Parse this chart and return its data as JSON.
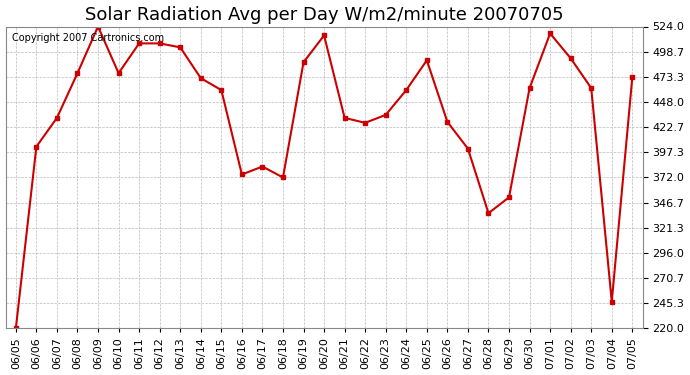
{
  "title": "Solar Radiation Avg per Day W/m2/minute 20070705",
  "copyright": "Copyright 2007 Cartronics.com",
  "dates": [
    "06/05",
    "06/06",
    "06/07",
    "06/08",
    "06/09",
    "06/10",
    "06/11",
    "06/12",
    "06/13",
    "06/14",
    "06/15",
    "06/16",
    "06/17",
    "06/18",
    "06/19",
    "06/20",
    "06/21",
    "06/22",
    "06/23",
    "06/24",
    "06/25",
    "06/26",
    "06/27",
    "06/28",
    "06/29",
    "06/30",
    "07/01",
    "07/02",
    "07/03",
    "07/04",
    "07/05"
  ],
  "values": [
    220.0,
    403.0,
    432.0,
    477.0,
    524.0,
    477.0,
    507.0,
    507.0,
    503.0,
    472.0,
    460.0,
    375.0,
    383.0,
    372.0,
    488.0,
    515.0,
    432.0,
    427.0,
    435.0,
    460.0,
    490.0,
    428.0,
    401.0,
    336.0,
    352.0,
    462.0,
    517.0,
    492.0,
    462.0,
    247.0,
    473.0
  ],
  "line_color": "#cc0000",
  "marker": "s",
  "marker_size": 3,
  "line_width": 1.5,
  "ylim": [
    220.0,
    524.0
  ],
  "yticks": [
    220.0,
    245.3,
    270.7,
    296.0,
    321.3,
    346.7,
    372.0,
    397.3,
    422.7,
    448.0,
    473.3,
    498.7,
    524.0
  ],
  "bg_color": "#ffffff",
  "grid_color": "#aaaaaa",
  "title_fontsize": 13,
  "copyright_fontsize": 7,
  "tick_fontsize": 8
}
